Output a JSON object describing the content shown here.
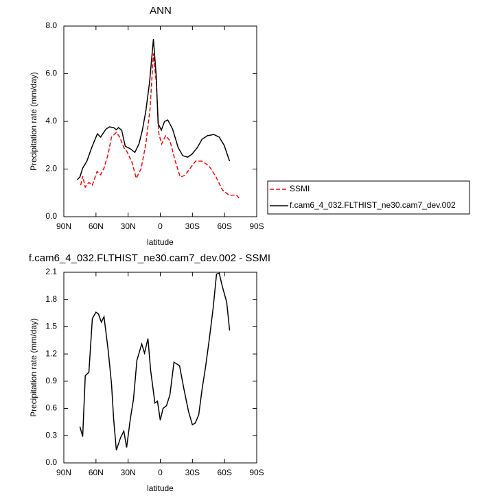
{
  "chart_data": [
    {
      "type": "line",
      "title": "ANN",
      "xlabel": "latitude",
      "ylabel": "Precipitation rate (mm/day)",
      "xlim": [
        90,
        -90
      ],
      "xticks": [
        {
          "value": 90,
          "label": "90N"
        },
        {
          "value": 60,
          "label": "60N"
        },
        {
          "value": 30,
          "label": "30N"
        },
        0,
        {
          "value": -30,
          "label": "30S"
        },
        {
          "value": -60,
          "label": "60S"
        },
        {
          "value": -90,
          "label": "90S"
        }
      ],
      "ylim": [
        0,
        8
      ],
      "yticks": [
        {
          "value": 0,
          "label": "0.0"
        },
        {
          "value": 2,
          "label": "2.0"
        },
        {
          "value": 4,
          "label": "4.0"
        },
        {
          "value": 6,
          "label": "6.0"
        },
        {
          "value": 8,
          "label": "8.0"
        }
      ],
      "legend": "right-outside",
      "series": [
        {
          "name": "SSMI",
          "color": "#ff0000",
          "line_style": "dashed",
          "x": [
            74.3,
            72.4,
            70,
            66.6,
            63.4,
            59,
            55.7,
            52.5,
            48.7,
            45.5,
            41,
            37.8,
            34,
            30.7,
            26.3,
            22.4,
            17.9,
            13.5,
            9.6,
            6.4,
            3.8,
            1.3,
            -1.3,
            -5,
            -9,
            -14,
            -18.6,
            -23,
            -28,
            -33,
            -39,
            -45.5,
            -52,
            -58,
            -64.7,
            -71,
            -74
          ],
          "values": [
            1.32,
            1.7,
            1.24,
            1.44,
            1.32,
            1.9,
            1.76,
            2.04,
            2.62,
            3.34,
            3.54,
            3.34,
            2.9,
            2.7,
            2.27,
            1.61,
            2.01,
            3.05,
            4.49,
            6.85,
            5.64,
            3.48,
            3.05,
            3.4,
            3.19,
            2.33,
            1.67,
            1.73,
            2.04,
            2.33,
            2.33,
            2.13,
            1.67,
            1.12,
            0.89,
            0.92,
            0.75
          ]
        },
        {
          "name": "f.cam6_4_032.FLTHIST_ne30.cam7_dev.002",
          "color": "#000000",
          "line_style": "solid",
          "x": [
            77.5,
            75,
            72.4,
            68.5,
            64,
            58.7,
            55.7,
            50.6,
            47.4,
            43.5,
            41,
            39,
            36,
            32.7,
            28,
            23.7,
            19.9,
            16.7,
            13.5,
            10,
            6.4,
            3.8,
            2,
            -1,
            -4,
            -7,
            -11.5,
            -16.7,
            -21,
            -25.6,
            -29.5,
            -34.6,
            -39,
            -44,
            -50,
            -55,
            -59.6,
            -64.7
          ],
          "values": [
            1.55,
            1.67,
            2.04,
            2.33,
            2.9,
            3.48,
            3.34,
            3.68,
            3.77,
            3.74,
            3.65,
            3.74,
            3.63,
            2.96,
            2.85,
            2.7,
            3.05,
            3.63,
            4.43,
            5.64,
            7.45,
            5.93,
            3.91,
            3.63,
            4.0,
            4.06,
            3.68,
            2.9,
            2.56,
            2.5,
            2.62,
            2.9,
            3.25,
            3.4,
            3.45,
            3.34,
            3.0,
            2.33
          ]
        }
      ]
    },
    {
      "type": "line",
      "title": "f.cam6_4_032.FLTHIST_ne30.cam7_dev.002 - SSMI",
      "xlabel": "latitude",
      "ylabel": "Precipitation rate (mm/day)",
      "xlim": [
        90,
        -90
      ],
      "xticks": [
        {
          "value": 90,
          "label": "90N"
        },
        {
          "value": 60,
          "label": "60N"
        },
        {
          "value": 30,
          "label": "30N"
        },
        0,
        {
          "value": -30,
          "label": "30S"
        },
        {
          "value": -60,
          "label": "60S"
        },
        {
          "value": -90,
          "label": "90S"
        }
      ],
      "ylim": [
        0,
        2.1
      ],
      "yticks": [
        {
          "value": 0,
          "label": "0.0"
        },
        {
          "value": 0.3,
          "label": "0.3"
        },
        {
          "value": 0.6,
          "label": "0.6"
        },
        {
          "value": 0.9,
          "label": "0.9"
        },
        {
          "value": 1.2,
          "label": "1.2"
        },
        {
          "value": 1.5,
          "label": "1.5"
        },
        {
          "value": 1.8,
          "label": "1.8"
        },
        {
          "value": 2.1,
          "label": "2.1"
        }
      ],
      "series": [
        {
          "color": "#000000",
          "line_style": "solid",
          "x": [
            75,
            72.4,
            70,
            66.6,
            63.4,
            60,
            57.7,
            55,
            52.5,
            48.7,
            45.5,
            43.5,
            41,
            37,
            34,
            31.4,
            28,
            25,
            21.8,
            17.3,
            14.7,
            11.5,
            9,
            5,
            2.6,
            0,
            -2.6,
            -5.8,
            -9,
            -12.8,
            -18,
            -21.8,
            -26.3,
            -30,
            -32.7,
            -35.9,
            -39,
            -42.3,
            -45.5,
            -49.3,
            -52.5,
            -55,
            -58,
            -62,
            -64.7
          ],
          "values": [
            0.4,
            0.29,
            0.96,
            1.0,
            1.59,
            1.66,
            1.64,
            1.55,
            1.61,
            1.25,
            0.87,
            0.48,
            0.14,
            0.28,
            0.35,
            0.17,
            0.48,
            0.7,
            1.13,
            1.31,
            1.21,
            1.37,
            1.02,
            0.66,
            0.68,
            0.47,
            0.6,
            0.63,
            0.75,
            1.11,
            1.07,
            0.83,
            0.57,
            0.42,
            0.44,
            0.53,
            0.81,
            1.06,
            1.34,
            1.7,
            2.08,
            2.09,
            1.94,
            1.77,
            1.46
          ]
        }
      ]
    }
  ]
}
